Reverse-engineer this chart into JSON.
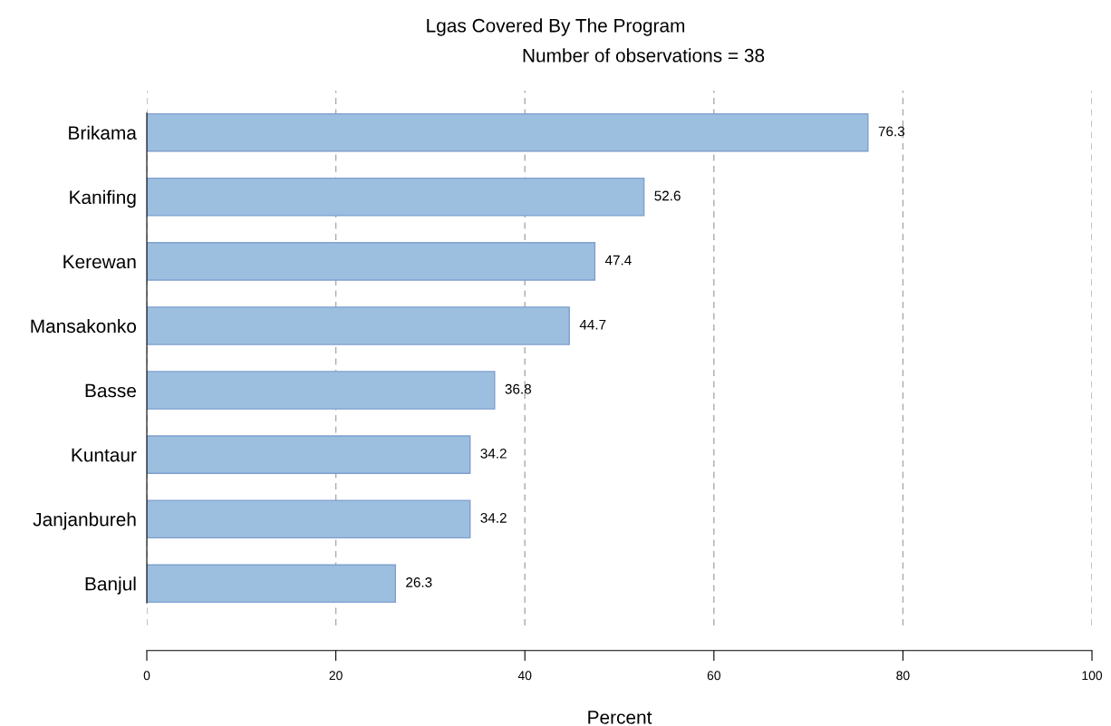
{
  "chart_data": {
    "type": "bar",
    "orientation": "horizontal",
    "title": "Lgas Covered By The Program",
    "subtitle": "Number of observations = 38",
    "xlabel": "Percent",
    "categories": [
      "Brikama",
      "Kanifing",
      "Kerewan",
      "Mansakonko",
      "Basse",
      "Kuntaur",
      "Janjanbureh",
      "Banjul"
    ],
    "values": [
      76.3,
      52.6,
      47.4,
      44.7,
      36.8,
      34.2,
      34.2,
      26.3
    ],
    "color": "#9dbfdf",
    "xlim": [
      0,
      100
    ],
    "xticks": [
      0,
      20,
      40,
      60,
      80,
      100
    ],
    "grid": "x",
    "data_labels": true
  }
}
